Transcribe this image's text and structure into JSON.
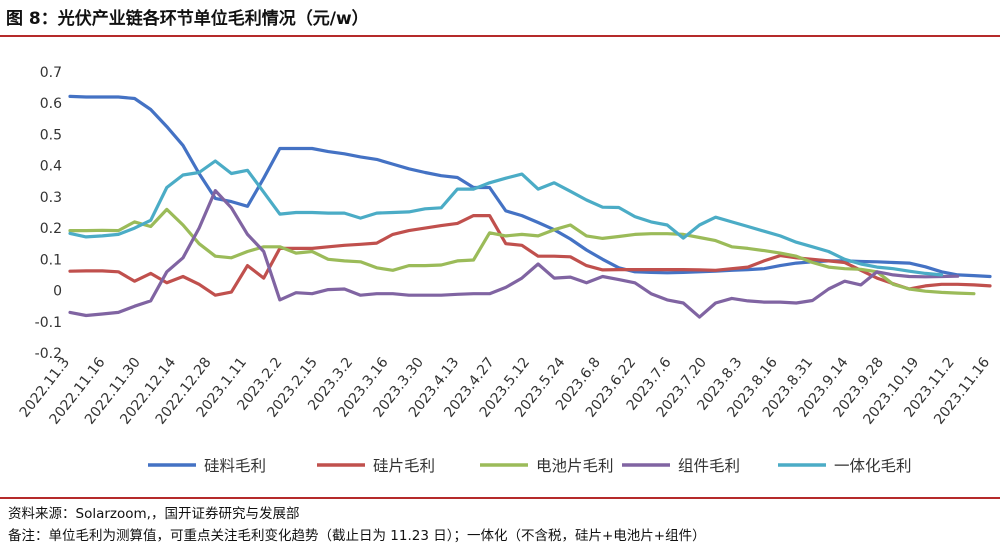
{
  "header": {
    "title": "图 8：光伏产业链各环节单位毛利情况（元/w）"
  },
  "footer": {
    "source": "资料来源：Solarzoom,，国开证券研究与发展部",
    "note": "备注：单位毛利为测算值，可重点关注毛利变化趋势（截止日为 11.23 日）；一体化（不含税，硅片+电池片+组件）"
  },
  "chart_data": {
    "type": "line",
    "title": "光伏产业链各环节单位毛利情况（元/w）",
    "xlabel": "",
    "ylabel": "",
    "ylim": [
      -0.2,
      0.7
    ],
    "yticks": [
      -0.2,
      -0.1,
      0,
      0.1,
      0.2,
      0.3,
      0.4,
      0.5,
      0.6,
      0.7
    ],
    "ytick_labels": [
      "-0.2",
      "-0.1",
      "0",
      "0.1",
      "0.2",
      "0.3",
      "0.4",
      "0.5",
      "0.6",
      "0.7"
    ],
    "grid": false,
    "legend_position": "bottom",
    "x_tick_labels": [
      "2022.11.3",
      "2022.11.16",
      "2022.11.30",
      "2022.12.14",
      "2022.12.28",
      "2023.1.11",
      "2023.2.2",
      "2023.2.15",
      "2023.3.2",
      "2023.3.16",
      "2023.3.30",
      "2023.4.13",
      "2023.4.27",
      "2023.5.12",
      "2023.5.24",
      "2023.6.8",
      "2023.6.22",
      "2023.7.6",
      "2023.7.20",
      "2023.8.3",
      "2023.8.16",
      "2023.8.31",
      "2023.9.14",
      "2023.9.28",
      "2023.10.19",
      "2023.11.2",
      "2023.11.16"
    ],
    "x_tick_every": 2,
    "series": [
      {
        "name": "硅料毛利",
        "color": "#4472c4",
        "values": [
          0.622,
          0.62,
          0.62,
          0.62,
          0.615,
          0.58,
          0.525,
          0.465,
          0.375,
          0.295,
          0.285,
          0.27,
          0.36,
          0.455,
          0.455,
          0.455,
          0.445,
          0.438,
          0.428,
          0.42,
          0.405,
          0.39,
          0.378,
          0.368,
          0.362,
          0.33,
          0.33,
          0.255,
          0.24,
          0.218,
          0.195,
          0.165,
          0.13,
          0.1,
          0.073,
          0.06,
          0.058,
          0.057,
          0.058,
          0.06,
          0.062,
          0.065,
          0.067,
          0.07,
          0.08,
          0.088,
          0.092,
          0.095,
          0.095,
          0.093,
          0.092,
          0.09,
          0.088,
          0.076,
          0.06,
          0.05,
          0.048,
          0.045
        ]
      },
      {
        "name": "硅片毛利",
        "color": "#c0504d",
        "values": [
          0.062,
          0.063,
          0.063,
          0.06,
          0.03,
          0.055,
          0.025,
          0.045,
          0.02,
          -0.015,
          -0.005,
          0.08,
          0.04,
          0.135,
          0.135,
          0.135,
          0.14,
          0.145,
          0.148,
          0.152,
          0.18,
          0.192,
          0.2,
          0.208,
          0.215,
          0.24,
          0.24,
          0.15,
          0.145,
          0.11,
          0.11,
          0.108,
          0.08,
          0.066,
          0.067,
          0.067,
          0.067,
          0.067,
          0.067,
          0.066,
          0.065,
          0.07,
          0.075,
          0.095,
          0.112,
          0.105,
          0.1,
          0.095,
          0.09,
          0.065,
          0.04,
          0.022,
          0.005,
          0.015,
          0.02,
          0.02,
          0.018,
          0.015
        ]
      },
      {
        "name": "电池片毛利",
        "color": "#9bbb59",
        "values": [
          0.192,
          0.192,
          0.193,
          0.192,
          0.22,
          0.205,
          0.26,
          0.21,
          0.15,
          0.11,
          0.105,
          0.125,
          0.14,
          0.14,
          0.12,
          0.125,
          0.1,
          0.095,
          0.092,
          0.073,
          0.065,
          0.08,
          0.08,
          0.082,
          0.095,
          0.098,
          0.185,
          0.175,
          0.18,
          0.175,
          0.195,
          0.21,
          0.175,
          0.167,
          0.173,
          0.18,
          0.182,
          0.182,
          0.18,
          0.17,
          0.16,
          0.14,
          0.135,
          0.128,
          0.12,
          0.11,
          0.09,
          0.075,
          0.07,
          0.068,
          0.06,
          0.02,
          0.005,
          -0.002,
          -0.006,
          -0.008,
          -0.01
        ]
      },
      {
        "name": "组件毛利",
        "color": "#8064a2",
        "values": [
          -0.07,
          -0.08,
          -0.075,
          -0.07,
          -0.05,
          -0.033,
          0.06,
          0.105,
          0.2,
          0.32,
          0.265,
          0.18,
          0.125,
          -0.03,
          -0.007,
          -0.01,
          0.003,
          0.005,
          -0.015,
          -0.01,
          -0.01,
          -0.015,
          -0.015,
          -0.015,
          -0.012,
          -0.01,
          -0.01,
          0.01,
          0.04,
          0.085,
          0.04,
          0.043,
          0.025,
          0.045,
          0.035,
          0.025,
          -0.01,
          -0.03,
          -0.04,
          -0.085,
          -0.04,
          -0.025,
          -0.033,
          -0.037,
          -0.037,
          -0.04,
          -0.032,
          0.005,
          0.03,
          0.018,
          0.06,
          0.05,
          0.045,
          0.044,
          0.045,
          0.046
        ]
      },
      {
        "name": "一体化毛利",
        "color": "#4bacc6",
        "values": [
          0.183,
          0.172,
          0.175,
          0.18,
          0.2,
          0.225,
          0.33,
          0.37,
          0.378,
          0.415,
          0.375,
          0.385,
          0.315,
          0.245,
          0.25,
          0.25,
          0.248,
          0.248,
          0.232,
          0.248,
          0.25,
          0.252,
          0.262,
          0.265,
          0.325,
          0.325,
          0.345,
          0.36,
          0.373,
          0.325,
          0.345,
          0.318,
          0.29,
          0.267,
          0.266,
          0.237,
          0.22,
          0.21,
          0.168,
          0.21,
          0.235,
          0.22,
          0.205,
          0.19,
          0.175,
          0.155,
          0.14,
          0.125,
          0.1,
          0.085,
          0.075,
          0.07,
          0.062,
          0.055,
          0.05
        ]
      }
    ]
  }
}
